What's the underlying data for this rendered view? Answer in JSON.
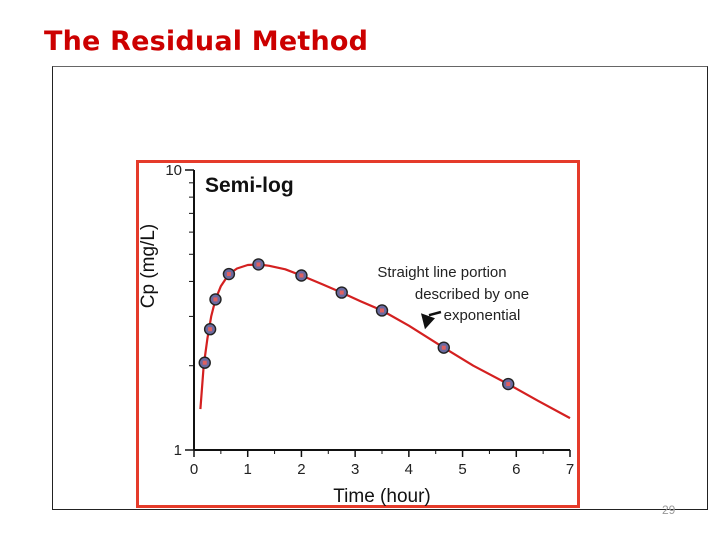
{
  "slide": {
    "title": "The Residual Method",
    "page_number": "29"
  },
  "colors": {
    "title": "#cc0000",
    "frame_border": "#e53b2a",
    "curve": "#d42020",
    "marker_fill": "#6a6aa0",
    "marker_stroke": "#222222"
  },
  "chart_data": {
    "type": "scatter",
    "panel_label": "Semi-log",
    "xlabel": "Time (hour)",
    "ylabel": "Cp (mg/L)",
    "xlim": [
      0,
      7
    ],
    "ylim": [
      1,
      10
    ],
    "yscale": "log",
    "x_ticks": [
      0,
      1,
      2,
      3,
      4,
      5,
      6,
      7
    ],
    "x_tick_labels": [
      "0",
      "1",
      "2",
      "3",
      "4",
      "5",
      "6",
      "7"
    ],
    "y_tick_labels": [
      "1",
      "10"
    ],
    "series": [
      {
        "style": "markers",
        "x": [
          0.2,
          0.3,
          0.4,
          0.65,
          1.2,
          2.0,
          2.75,
          3.5,
          4.65,
          5.85
        ],
        "y": [
          2.05,
          2.7,
          3.45,
          4.25,
          4.6,
          4.2,
          3.65,
          3.15,
          2.32,
          1.72
        ]
      },
      {
        "style": "line",
        "x": [
          0.12,
          0.18,
          0.25,
          0.32,
          0.4,
          0.5,
          0.65,
          0.8,
          1.0,
          1.2,
          1.4,
          1.7,
          2.0,
          2.4,
          2.75,
          3.1,
          3.5,
          4.0,
          4.65,
          5.2,
          5.85,
          6.4,
          7.0
        ],
        "y": [
          1.4,
          2.0,
          2.5,
          3.0,
          3.45,
          3.85,
          4.25,
          4.45,
          4.58,
          4.6,
          4.55,
          4.42,
          4.2,
          3.9,
          3.65,
          3.4,
          3.15,
          2.78,
          2.32,
          2.0,
          1.72,
          1.5,
          1.3
        ]
      }
    ],
    "annotation": {
      "lines": [
        "Straight line portion",
        "described by one",
        "exponential"
      ],
      "arrow_target": {
        "x": 4.3,
        "y": 2.7
      }
    },
    "grid": false,
    "legend": "none"
  }
}
